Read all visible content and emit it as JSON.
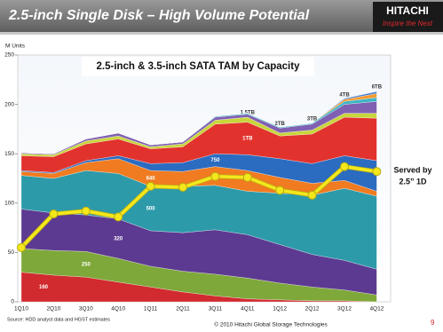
{
  "slide": {
    "title": "2.5-inch Single Disk – High Volume Potential",
    "logo": "HITACHI",
    "tagline": "Inspire the Next",
    "source": "Source: HDD analyst data and HGST estimates",
    "copyright": "© 2010 Hitachi Global Storage Technologies",
    "page": "9"
  },
  "chart_data": {
    "type": "area",
    "title": "2.5-inch & 3.5-inch SATA TAM by Capacity",
    "y_label": "M Units",
    "categories": [
      "1Q10",
      "2Q10",
      "3Q10",
      "4Q10",
      "1Q11",
      "2Q11",
      "3Q11",
      "4Q11",
      "1Q12",
      "2Q12",
      "3Q12",
      "4Q12"
    ],
    "ylim": [
      0,
      250
    ],
    "yticks": [
      0,
      50,
      100,
      150,
      200,
      250
    ],
    "grid": false,
    "series": [
      {
        "name": "160",
        "color": "#d12a2f",
        "values": [
          30,
          27,
          25,
          20,
          15,
          10,
          6,
          3,
          2,
          1,
          1,
          0
        ]
      },
      {
        "name": "250",
        "color": "#7ea83a",
        "values": [
          24,
          25,
          26,
          24,
          21,
          21,
          22,
          21,
          17,
          14,
          11,
          7
        ]
      },
      {
        "name": "320",
        "color": "#5d3a91",
        "values": [
          40,
          38,
          37,
          40,
          36,
          39,
          45,
          44,
          39,
          33,
          30,
          26
        ]
      },
      {
        "name": "500",
        "color": "#2d9aa9",
        "values": [
          34,
          35,
          45,
          46,
          45,
          47,
          45,
          44,
          52,
          60,
          73,
          74
        ]
      },
      {
        "name": "640",
        "color": "#f07b20",
        "values": [
          4,
          5,
          8,
          15,
          16,
          15,
          19,
          21,
          16,
          12,
          8,
          5
        ]
      },
      {
        "name": "750",
        "color": "#2b6cc0",
        "values": [
          1,
          1,
          2,
          3,
          7,
          9,
          13,
          16,
          19,
          20,
          25,
          31
        ]
      },
      {
        "name": "1TB",
        "color": "#e2322d",
        "values": [
          15,
          16,
          17,
          17,
          15,
          16,
          30,
          33,
          23,
          30,
          39,
          43
        ]
      },
      {
        "name": "1.5TB",
        "color": "#c8d53b",
        "values": [
          2,
          2,
          3,
          3,
          2,
          3,
          4,
          5,
          3,
          4,
          4,
          5
        ]
      },
      {
        "name": "2TB",
        "color": "#8060b2",
        "values": [
          1,
          1,
          2,
          3,
          2,
          2,
          3,
          3,
          5,
          6,
          9,
          12
        ]
      },
      {
        "name": "3TB",
        "color": "#3fb5c5",
        "values": [
          0,
          0,
          0,
          0,
          0,
          0,
          1,
          1,
          1,
          1,
          3,
          4
        ]
      },
      {
        "name": "4TB",
        "color": "#f59a2e",
        "values": [
          0,
          0,
          0,
          0,
          0,
          0,
          0,
          0,
          0,
          0,
          2,
          4
        ]
      },
      {
        "name": "6TB",
        "color": "#4c80d2",
        "values": [
          0,
          0,
          0,
          0,
          0,
          0,
          0,
          0,
          0,
          0,
          1,
          2
        ]
      }
    ],
    "line": {
      "label": [
        "Served by",
        "2.5” 1D"
      ],
      "color": "#f4e71c",
      "values": [
        55,
        89,
        92,
        86,
        117,
        116,
        127,
        126,
        113,
        108,
        137,
        132
      ]
    }
  }
}
